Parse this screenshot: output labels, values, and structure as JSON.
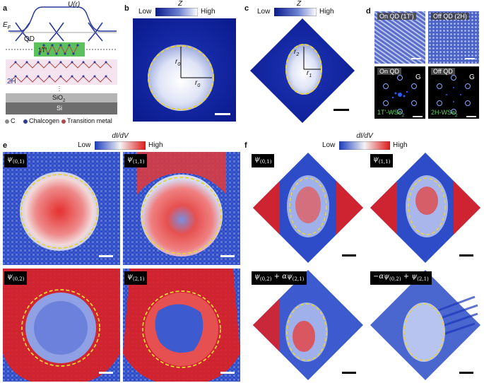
{
  "panels": {
    "a": {
      "label": "a",
      "ef": "E",
      "ef_sub": "F",
      "qd": "QD",
      "potential": "U(r)",
      "phase_1t": "1T′",
      "phase_2h": "2H",
      "substrate_sio2": "SiO",
      "substrate_sio2_sub": "2",
      "substrate_si": "Si",
      "legend": [
        {
          "label": "C",
          "color": "#8a8a8a"
        },
        {
          "label": "Chalcogen",
          "color": "#2a3b9c"
        },
        {
          "label": "Transition metal",
          "color": "#b04848"
        }
      ]
    },
    "b": {
      "label": "b",
      "cbar_title": "Z",
      "cbar_low": "Low",
      "cbar_high": "High",
      "r0_a": "r",
      "r0_a_sub": "0",
      "r0_b": "r",
      "r0_b_sub": "0"
    },
    "c": {
      "label": "c",
      "cbar_title": "Z",
      "cbar_low": "Low",
      "cbar_high": "High",
      "r2": "r",
      "r2_sub": "2",
      "r1": "r",
      "r1_sub": "1"
    },
    "d": {
      "label": "d",
      "on_qd_top": "On QD (1T′)",
      "off_qd_top": "Off QD (2H)",
      "on_qd_fft": "On QD",
      "off_qd_fft": "Off QD",
      "g": "G",
      "g2": "G",
      "caption_1t": "1T′-WSe",
      "caption_1t_sub": "2",
      "caption_2h": "2H-WSe",
      "caption_2h_sub": "2"
    },
    "e": {
      "label": "e",
      "cbar_title": "dI/dV",
      "cbar_low": "Low",
      "cbar_high": "High",
      "tiles": [
        {
          "psi": "ψ",
          "sub": "(0,1)"
        },
        {
          "psi": "ψ",
          "sub": "(1,1)"
        },
        {
          "psi": "ψ",
          "sub": "(0,2)"
        },
        {
          "psi": "ψ",
          "sub": "(2,1)"
        }
      ]
    },
    "f": {
      "label": "f",
      "cbar_title": "dI/dV",
      "cbar_low": "Low",
      "cbar_high": "High",
      "tiles": [
        {
          "pre": "ψ",
          "sub": "(0,1)",
          "mid": "",
          "post": "",
          "post_sub": ""
        },
        {
          "pre": "ψ",
          "sub": "(1,1)",
          "mid": "",
          "post": "",
          "post_sub": ""
        },
        {
          "pre": "ψ",
          "sub": "(0,2)",
          "mid": " + αψ",
          "post_sub": "(2,1)"
        },
        {
          "pre": "−αψ",
          "sub": "(0,2)",
          "mid": " + ψ",
          "post_sub": "(2,1)"
        }
      ]
    }
  },
  "colors": {
    "z_low": "#0a1a8c",
    "z_high": "#ffffff",
    "didv_low": "#2346c8",
    "didv_mid": "#f4f4f4",
    "didv_high": "#e02020",
    "dash": "#e8d23a"
  }
}
